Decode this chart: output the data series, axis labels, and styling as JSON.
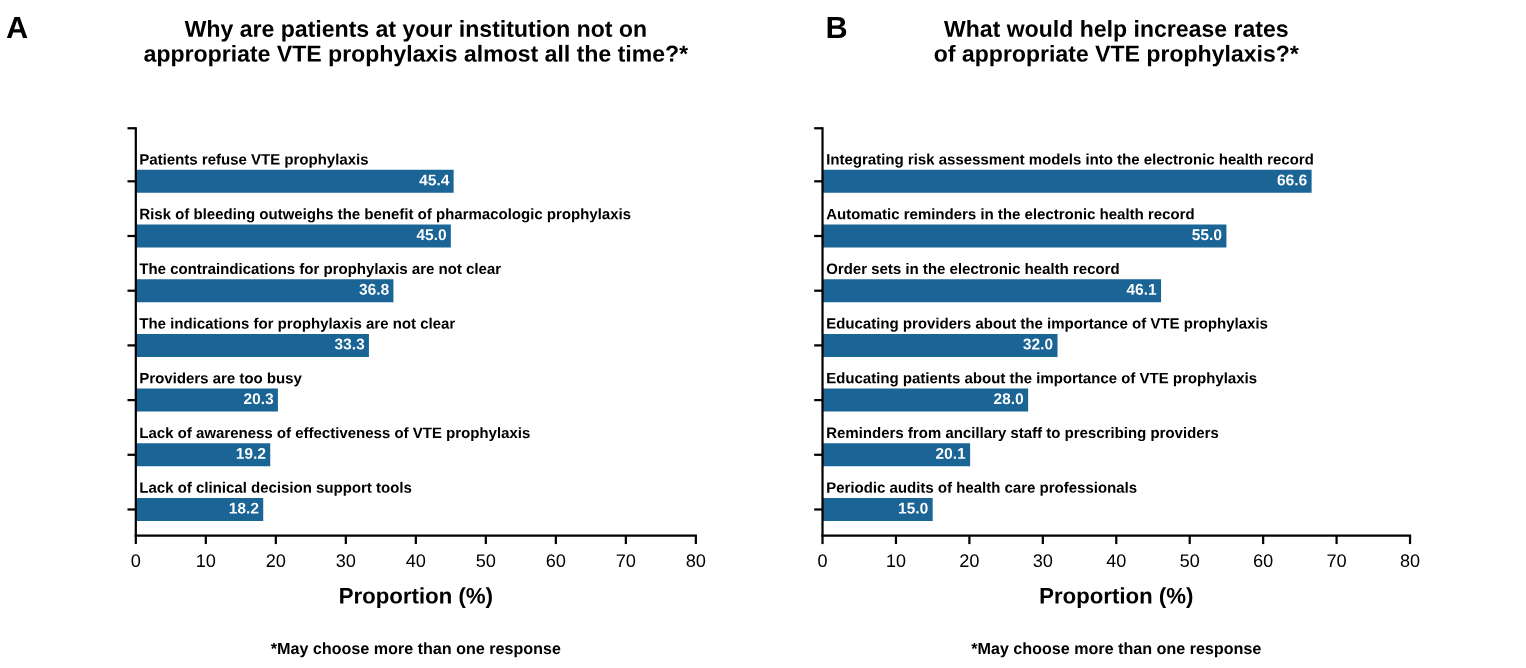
{
  "chart_data": [
    {
      "type": "bar",
      "orientation": "horizontal",
      "title": "Why are patients at your institution not on appropriate VTE prophylaxis almost all the time?*",
      "xlabel": "Proportion (%)",
      "categories": [
        "Patients refuse VTE prophylaxis",
        "Risk of bleeding outweighs the benefit of pharmacologic prophylaxis",
        "The contraindications for prophylaxis are not clear",
        "The indications for prophylaxis are not clear",
        "Providers are too busy",
        "Lack of awareness of effectiveness of VTE prophylaxis",
        "Lack of clinical decision support tools"
      ],
      "values": [
        45.4,
        45.0,
        36.8,
        33.3,
        20.3,
        19.2,
        18.2
      ],
      "value_labels": [
        "45.4",
        "45.0",
        "36.8",
        "33.3",
        "20.3",
        "19.2",
        "18.2"
      ],
      "color": "#1b6496",
      "xlim": [
        0,
        80
      ],
      "xticks": [
        0,
        10,
        20,
        30,
        40,
        50,
        60,
        70,
        80
      ],
      "tick_labels": "x",
      "grid": false,
      "legend": false,
      "annotations": [
        "A",
        "*May choose more than one response"
      ]
    },
    {
      "type": "bar",
      "orientation": "horizontal",
      "title": "What would help increase rates of appropriate VTE prophylaxis?*",
      "xlabel": "Proportion (%)",
      "categories": [
        "Integrating risk assessment models into the electronic health record",
        "Automatic reminders in the electronic health record",
        "Order sets in the electronic health record",
        "Educating providers about the importance of VTE prophylaxis",
        "Educating patients about the importance of VTE prophylaxis",
        "Reminders from ancillary staff to prescribing providers",
        "Periodic audits of health care professionals"
      ],
      "values": [
        66.6,
        55.0,
        46.1,
        32.0,
        28.0,
        20.1,
        15.0
      ],
      "value_labels": [
        "66.6",
        "55.0",
        "46.1",
        "32.0",
        "28.0",
        "20.1",
        "15.0"
      ],
      "color": "#1b6496",
      "xlim": [
        0,
        80
      ],
      "xticks": [
        0,
        10,
        20,
        30,
        40,
        50,
        60,
        70,
        80
      ],
      "tick_labels": "x",
      "grid": false,
      "legend": false,
      "annotations": [
        "B",
        "*May choose more than one response"
      ]
    }
  ]
}
